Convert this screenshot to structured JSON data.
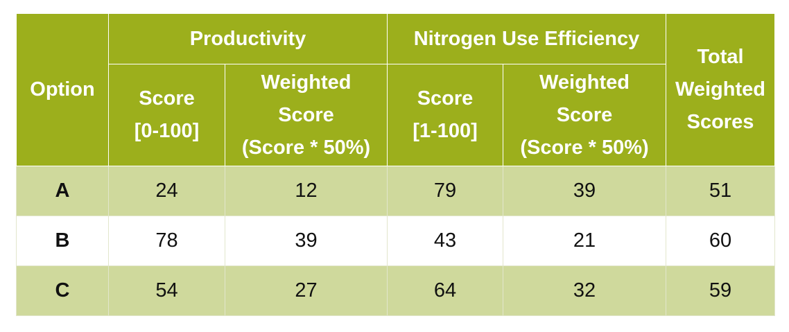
{
  "table": {
    "header": {
      "option": "Option",
      "productivity": "Productivity",
      "nue": "Nitrogen Use Efficiency",
      "total": [
        "Total",
        "Weighted",
        "Scores"
      ],
      "prod_score": [
        "Score",
        "[0-100]"
      ],
      "prod_weighted": [
        "Weighted",
        "Score",
        "(Score * 50%)"
      ],
      "nue_score": [
        "Score",
        "[1-100]"
      ],
      "nue_weighted": [
        "Weighted",
        "Score",
        "(Score * 50%)"
      ]
    },
    "rows": [
      {
        "option": "A",
        "prod_score": "24",
        "prod_weighted": "12",
        "nue_score": "79",
        "nue_weighted": "39",
        "total": "51"
      },
      {
        "option": "B",
        "prod_score": "78",
        "prod_weighted": "39",
        "nue_score": "43",
        "nue_weighted": "21",
        "total": "60"
      },
      {
        "option": "C",
        "prod_score": "54",
        "prod_weighted": "27",
        "nue_score": "64",
        "nue_weighted": "32",
        "total": "59"
      }
    ],
    "colors": {
      "header_bg": "#9caf1c",
      "header_text": "#ffffff",
      "row_shaded": "#cfd99c",
      "row_plain": "#ffffff"
    }
  }
}
